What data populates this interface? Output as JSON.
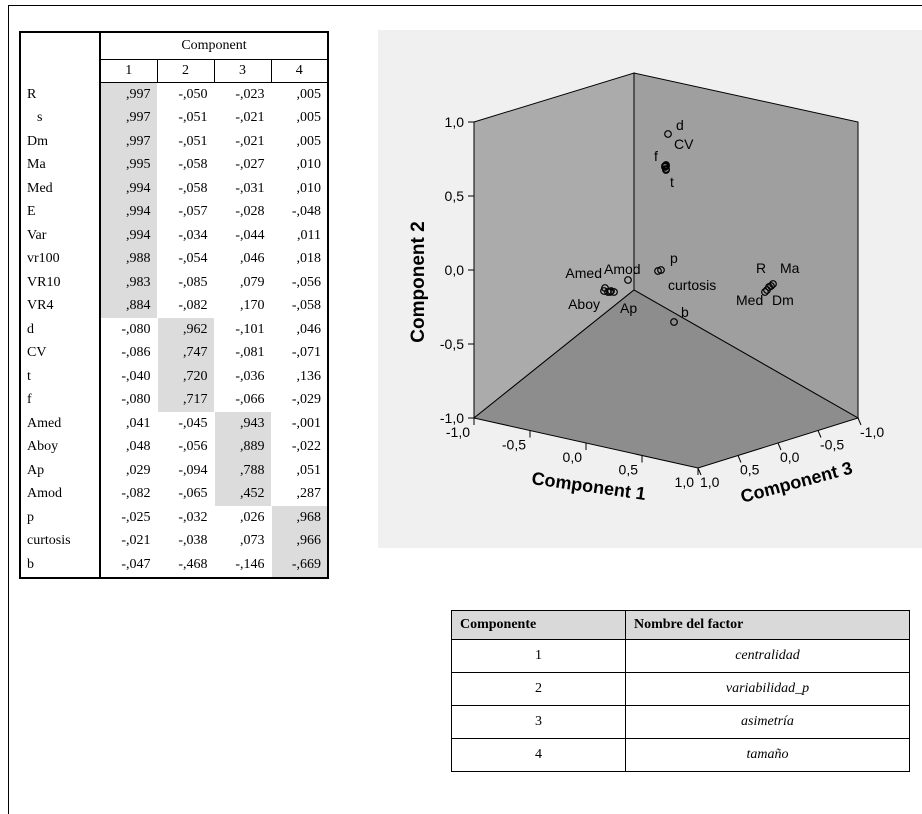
{
  "loadings_table": {
    "header": "Component",
    "columns": [
      "1",
      "2",
      "3",
      "4"
    ],
    "rows": [
      {
        "label": "R",
        "values": [
          ",997",
          "-,050",
          "-,023",
          ",005"
        ],
        "hl": 0
      },
      {
        "label": "s",
        "values": [
          ",997",
          "-,051",
          "-,021",
          ",005"
        ],
        "hl": 0
      },
      {
        "label": "Dm",
        "values": [
          ",997",
          "-,051",
          "-,021",
          ",005"
        ],
        "hl": 0
      },
      {
        "label": "Ma",
        "values": [
          ",995",
          "-,058",
          "-,027",
          ",010"
        ],
        "hl": 0
      },
      {
        "label": "Med",
        "values": [
          ",994",
          "-,058",
          "-,031",
          ",010"
        ],
        "hl": 0
      },
      {
        "label": "E",
        "values": [
          ",994",
          "-,057",
          "-,028",
          "-,048"
        ],
        "hl": 0
      },
      {
        "label": "Var",
        "values": [
          ",994",
          "-,034",
          "-,044",
          ",011"
        ],
        "hl": 0
      },
      {
        "label": "vr100",
        "values": [
          ",988",
          "-,054",
          ",046",
          ",018"
        ],
        "hl": 0
      },
      {
        "label": "VR10",
        "values": [
          ",983",
          "-,085",
          ",079",
          "-,056"
        ],
        "hl": 0
      },
      {
        "label": "VR4",
        "values": [
          ",884",
          "-,082",
          ",170",
          "-,058"
        ],
        "hl": 0
      },
      {
        "label": "d",
        "values": [
          "-,080",
          ",962",
          "-,101",
          ",046"
        ],
        "hl": 1
      },
      {
        "label": "CV",
        "values": [
          "-,086",
          ",747",
          "-,081",
          "-,071"
        ],
        "hl": 1
      },
      {
        "label": "t",
        "values": [
          "-,040",
          ",720",
          "-,036",
          ",136"
        ],
        "hl": 1
      },
      {
        "label": "f",
        "values": [
          "-,080",
          ",717",
          "-,066",
          "-,029"
        ],
        "hl": 1
      },
      {
        "label": "Amed",
        "values": [
          ",041",
          "-,045",
          ",943",
          "-,001"
        ],
        "hl": 2
      },
      {
        "label": "Aboy",
        "values": [
          ",048",
          "-,056",
          ",889",
          "-,022"
        ],
        "hl": 2
      },
      {
        "label": "Ap",
        "values": [
          ",029",
          "-,094",
          ",788",
          ",051"
        ],
        "hl": 2
      },
      {
        "label": "Amod",
        "values": [
          "-,082",
          "-,065",
          ",452",
          ",287"
        ],
        "hl": 2
      },
      {
        "label": "p",
        "values": [
          "-,025",
          "-,032",
          ",026",
          ",968"
        ],
        "hl": 3
      },
      {
        "label": "curtosis",
        "values": [
          "-,021",
          "-,038",
          ",073",
          ",966"
        ],
        "hl": 3
      },
      {
        "label": "b",
        "values": [
          "-,047",
          "-,468",
          "-,146",
          "-,669"
        ],
        "hl": 3
      }
    ]
  },
  "plot": {
    "axis_x_title": "Component 1",
    "axis_y_title": "Component 2",
    "axis_z_title": "Component 3",
    "y_ticks": [
      "1,0",
      "0,5",
      "0,0",
      "-0,5",
      "-1,0"
    ],
    "x_ticks": [
      "-1,0",
      "-0,5",
      "0,0",
      "0,5",
      "1,0"
    ],
    "z_ticks": [
      "1,0",
      "0,5",
      "0,0",
      "-0,5",
      "-1,0"
    ],
    "point_labels": [
      "d",
      "CV",
      "f",
      "t",
      "p",
      "Amed",
      "Amod",
      "curtosis",
      "Aboy",
      "Ap",
      "b",
      "R",
      "Ma",
      "Med",
      "Dm"
    ],
    "colors": {
      "panel": "#f0f0f0",
      "left_wall": "#ababab",
      "back_wall": "#9f9f9f",
      "floor": "#8d8d8d"
    }
  },
  "factor_table": {
    "headers": [
      "Componente",
      "Nombre del factor"
    ],
    "rows": [
      {
        "component": "1",
        "name": "centralidad"
      },
      {
        "component": "2",
        "name": "variabilidad_p"
      },
      {
        "component": "3",
        "name": "asimetría"
      },
      {
        "component": "4",
        "name": "tamaño"
      }
    ]
  }
}
